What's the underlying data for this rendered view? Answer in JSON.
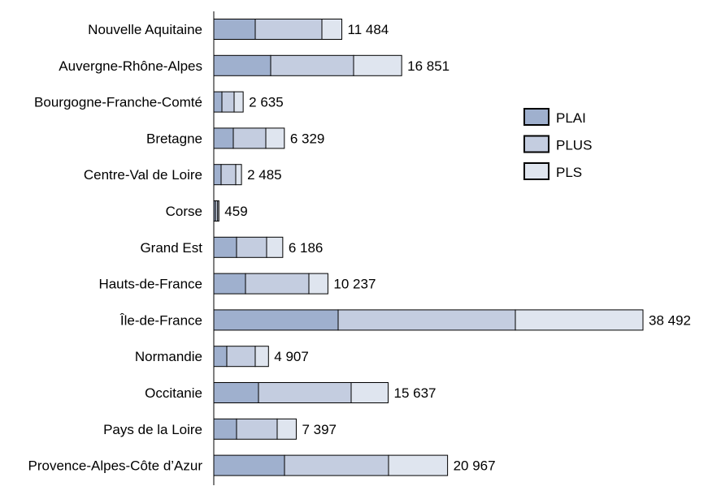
{
  "chart_data": {
    "type": "bar",
    "orientation": "horizontal",
    "stacked": true,
    "categories": [
      "Nouvelle Aquitaine",
      "Auvergne-Rhône-Alpes",
      "Bourgogne-Franche-Comté",
      "Bretagne",
      "Centre-Val de Loire",
      "Corse",
      "Grand Est",
      "Hauts-de-France",
      "Île-de-France",
      "Normandie",
      "Occitanie",
      "Pays de la Loire",
      "Provence-Alpes-Côte d’Azur"
    ],
    "totals": [
      11484,
      16851,
      2635,
      6329,
      2485,
      459,
      6186,
      10237,
      38492,
      4907,
      15637,
      7397,
      20967
    ],
    "total_labels": [
      "11 484",
      "16 851",
      "2 635",
      "6 329",
      "2 485",
      "459",
      "6 186",
      "10 237",
      "38 492",
      "4 907",
      "15 637",
      "7 397",
      "20 967"
    ],
    "series": [
      {
        "name": "PLAI",
        "color": "#9fb0ce",
        "values": [
          3718,
          5103,
          729,
          1750,
          656,
          150,
          2041,
          2843,
          11154,
          1166,
          4009,
          2041,
          6342
        ]
      },
      {
        "name": "PLUS",
        "color": "#c4cde0",
        "values": [
          5978,
          7436,
          1094,
          2916,
          1312,
          200,
          2697,
          5686,
          15892,
          2551,
          8311,
          3645,
          9331
        ]
      },
      {
        "name": "PLS",
        "color": "#dfe5ef",
        "values": [
          1788,
          4312,
          812,
          1663,
          517,
          109,
          1448,
          1708,
          11446,
          1190,
          3317,
          1711,
          5294
        ]
      }
    ],
    "xlim": [
      0,
      38492
    ],
    "grid": false,
    "legend": "right"
  }
}
